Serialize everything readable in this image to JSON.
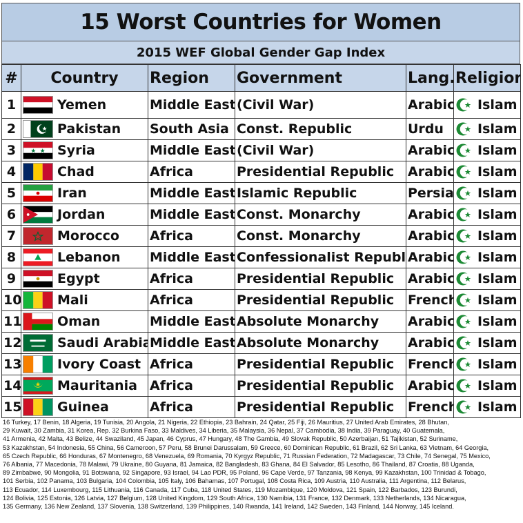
{
  "title": "15 Worst Countries for Women",
  "subtitle": "2015 WEF Global Gender Gap Index",
  "headers": {
    "num": "#",
    "country": "Country",
    "region": "Region",
    "government": "Government",
    "lang": "Lang.",
    "religion": "Religion"
  },
  "colors": {
    "header_bg": "#b8cce4",
    "crescent_green": "#1d8a35"
  },
  "rows": [
    {
      "rank": "1",
      "country": "Yemen",
      "flag": "yemen-flag-icon",
      "region": "Middle East",
      "government": "(Civil War)",
      "lang": "Arabic",
      "religion": "Islam"
    },
    {
      "rank": "2",
      "country": "Pakistan",
      "flag": "pakistan-flag-icon",
      "region": "South Asia",
      "government": "Const. Republic",
      "lang": "Urdu",
      "religion": "Islam"
    },
    {
      "rank": "3",
      "country": "Syria",
      "flag": "syria-flag-icon",
      "region": "Middle East",
      "government": "(Civil War)",
      "lang": "Arabic",
      "religion": "Islam"
    },
    {
      "rank": "4",
      "country": "Chad",
      "flag": "chad-flag-icon",
      "region": "Africa",
      "government": "Presidential Republic",
      "lang": "Arabic",
      "religion": "Islam"
    },
    {
      "rank": "5",
      "country": "Iran",
      "flag": "iran-flag-icon",
      "region": "Middle East",
      "government": "Islamic Republic",
      "lang": "Persian",
      "religion": "Islam"
    },
    {
      "rank": "6",
      "country": "Jordan",
      "flag": "jordan-flag-icon",
      "region": "Middle East",
      "government": "Const. Monarchy",
      "lang": "Arabic",
      "religion": "Islam"
    },
    {
      "rank": "7",
      "country": "Morocco",
      "flag": "morocco-flag-icon",
      "region": "Africa",
      "government": "Const. Monarchy",
      "lang": "Arabic",
      "religion": "Islam"
    },
    {
      "rank": "8",
      "country": "Lebanon",
      "flag": "lebanon-flag-icon",
      "region": "Middle East",
      "government": "Confessionalist Republic",
      "lang": "Arabic",
      "religion": "Islam"
    },
    {
      "rank": "9",
      "country": "Egypt",
      "flag": "egypt-flag-icon",
      "region": "Africa",
      "government": "Presidential Republic",
      "lang": "Arabic",
      "religion": "Islam"
    },
    {
      "rank": "10",
      "country": "Mali",
      "flag": "mali-flag-icon",
      "region": "Africa",
      "government": "Presidential Republic",
      "lang": "French",
      "religion": "Islam"
    },
    {
      "rank": "11",
      "country": "Oman",
      "flag": "oman-flag-icon",
      "region": "Middle East",
      "government": "Absolute Monarchy",
      "lang": "Arabic",
      "religion": "Islam"
    },
    {
      "rank": "12",
      "country": "Saudi Arabia",
      "flag": "saudi-flag-icon",
      "region": "Middle East",
      "government": "Absolute Monarchy",
      "lang": "Arabic",
      "religion": "Islam"
    },
    {
      "rank": "13",
      "country": "Ivory Coast",
      "flag": "ivory-coast-flag-icon",
      "region": "Africa",
      "government": "Presidential Republic",
      "lang": "French",
      "religion": "Islam"
    },
    {
      "rank": "14",
      "country": "Mauritania",
      "flag": "mauritania-flag-icon",
      "region": "Africa",
      "government": "Presidential Republic",
      "lang": "Arabic",
      "religion": "Islam"
    },
    {
      "rank": "15",
      "country": "Guinea",
      "flag": "guinea-flag-icon",
      "region": "Africa",
      "government": "Presidential Republic",
      "lang": "French",
      "religion": "Islam"
    }
  ],
  "footer_lines": [
    "16 Turkey, 17 Benin, 18 Algeria, 19 Tunisia, 20 Angola, 21 Nigeria, 22 Ethiopia, 23 Bahrain, 24 Qatar, 25 Fiji, 26 Mauritius, 27 United Arab Emirates, 28 Bhutan,",
    "29 Kuwait, 30 Zambia, 31 Korea, Rep. 32 Burkina Faso, 33 Maldives, 34 Liberia, 35 Malaysia, 36 Nepal, 37 Cambodia, 38 India, 39 Paraguay, 40 Guatemala,",
    "41 Armenia, 42 Malta, 43 Belize, 44 Swaziland, 45 Japan, 46 Cyprus, 47 Hungary, 48 The Gambia, 49 Slovak Republic, 50 Azerbaijan, 51 Tajikistan, 52 Suriname,",
    "53 Kazakhstan, 54 Indonesia, 55 China, 56 Cameroon, 57 Peru, 58 Brunei Darussalam, 59 Greece, 60 Dominican Republic, 61 Brazil, 62 Sri Lanka, 63 Vietnam, 64 Georgia,",
    "65 Czech Republic, 66 Honduras, 67 Montenegro, 68 Venezuela, 69 Romania, 70 Kyrgyz Republic, 71 Russian Federation, 72 Madagascar, 73 Chile, 74 Senegal, 75 Mexico,",
    "76 Albania, 77 Macedonia, 78 Malawi, 79 Ukraine, 80 Guyana, 81 Jamaica, 82 Bangladesh, 83 Ghana, 84 El Salvador, 85 Lesotho, 86 Thailand, 87 Croatia, 88 Uganda,",
    "89 Zimbabwe, 90 Mongolia, 91 Botswana, 92 Singapore, 93 Israel, 94 Lao PDR, 95 Poland, 96 Cape Verde, 97 Tanzania, 98 Kenya, 99 Kazakhstan, 100 Trinidad & Tobago,",
    "101 Serbia, 102 Panama, 103 Bulgaria, 104 Colombia, 105 Italy, 106 Bahamas, 107 Portugal, 108 Costa Rica, 109 Austria, 110 Australia, 111 Argentina, 112 Belarus,",
    "113 Ecuador, 114 Luxembourg, 115 Lithuania, 116 Canada, 117 Cuba, 118 United States, 119 Mozambique, 120 Moldova, 121 Spain, 122 Barbados, 123 Burundi,",
    "124 Bolivia, 125 Estonia, 126 Latvia, 127 Belgium, 128 United Kingdom, 129 South Africa, 130 Namibia, 131 France, 132 Denmark, 133 Netherlands, 134 Nicaragua,",
    "135 Germany, 136 New Zealand, 137 Slovenia, 138 Switzerland, 139 Philippines, 140 Rwanda, 141 Ireland, 142 Sweden, 143 Finland, 144 Norway, 145 Iceland."
  ]
}
